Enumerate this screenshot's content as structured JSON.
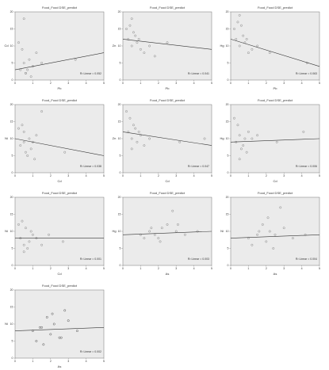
{
  "chart_data": [
    {
      "type": "scatter",
      "title": "Food_Food DSE_predict",
      "x_label": "Pb",
      "y_label": "Cd",
      "annotation": "R² Linear = 0.052",
      "color": "#888888",
      "line_color": "#333333",
      "x": [
        0.3,
        0.5,
        0.6,
        0.8,
        1.0,
        0.4,
        0.7,
        1.2,
        0.9,
        1.5,
        0.2,
        3.4,
        0.5,
        0.6
      ],
      "y": [
        3,
        5,
        2,
        6,
        4,
        9,
        3,
        8,
        1,
        5,
        11,
        6,
        18,
        2
      ],
      "fit": [
        3,
        8
      ],
      "xlim": [
        0,
        5
      ],
      "ylim": [
        0,
        20
      ],
      "xticks": [
        0,
        1,
        2,
        3,
        4,
        5
      ],
      "yticks": [
        0,
        5,
        10,
        15,
        20
      ]
    },
    {
      "type": "scatter",
      "title": "Food_Food DSE_predict",
      "x_label": "Pb",
      "y_label": "Zn",
      "annotation": "R² Linear = 0.041",
      "color": "#888888",
      "line_color": "#333333",
      "x": [
        0.3,
        0.5,
        0.6,
        0.8,
        1.0,
        0.4,
        0.7,
        1.2,
        0.9,
        1.5,
        0.2,
        2.5,
        0.5,
        1.8
      ],
      "y": [
        12,
        10,
        14,
        11,
        9,
        16,
        13,
        8,
        12,
        10,
        15,
        11,
        18,
        7
      ],
      "fit": [
        12,
        9
      ],
      "xlim": [
        0,
        5
      ],
      "ylim": [
        0,
        20
      ],
      "xticks": [
        0,
        1,
        2,
        3,
        4,
        5
      ],
      "yticks": [
        0,
        5,
        10,
        15,
        20
      ]
    },
    {
      "type": "scatter",
      "title": "Food_Food DSE_predict",
      "x_label": "Pb",
      "y_label": "Hg",
      "annotation": "R² Linear = 0.063",
      "color": "#888888",
      "line_color": "#333333",
      "x": [
        0.3,
        0.5,
        0.6,
        0.8,
        1.0,
        0.4,
        0.7,
        1.2,
        0.9,
        1.5,
        0.2,
        2.2,
        0.5,
        4.3
      ],
      "y": [
        12,
        10,
        16,
        11,
        8,
        17,
        13,
        9,
        12,
        10,
        15,
        8,
        19,
        5
      ],
      "fit": [
        12,
        4
      ],
      "xlim": [
        0,
        5
      ],
      "ylim": [
        0,
        20
      ],
      "xticks": [
        0,
        1,
        2,
        3,
        4,
        5
      ],
      "yticks": [
        0,
        5,
        10,
        15,
        20
      ]
    },
    {
      "type": "scatter",
      "title": "Food_Food DSE_predict",
      "x_label": "Cd",
      "y_label": "Ni",
      "annotation": "R² Linear = 0.038",
      "color": "#888888",
      "line_color": "#333333",
      "x": [
        0.3,
        0.5,
        0.6,
        0.8,
        1.0,
        0.4,
        0.7,
        1.2,
        0.9,
        1.5,
        0.2,
        2.8,
        0.5,
        1.1
      ],
      "y": [
        8,
        12,
        6,
        10,
        9,
        14,
        5,
        11,
        7,
        18,
        13,
        6,
        9,
        4
      ],
      "fit": [
        10,
        5
      ],
      "xlim": [
        0,
        5
      ],
      "ylim": [
        0,
        20
      ],
      "xticks": [
        0,
        1,
        2,
        3,
        4,
        5
      ],
      "yticks": [
        0,
        5,
        10,
        15,
        20
      ]
    },
    {
      "type": "scatter",
      "title": "Food_Food DSE_predict",
      "x_label": "Cd",
      "y_label": "Zn",
      "annotation": "R² Linear = 0.047",
      "color": "#888888",
      "line_color": "#333333",
      "x": [
        0.3,
        0.5,
        0.6,
        0.8,
        1.0,
        0.4,
        0.7,
        1.2,
        0.9,
        1.5,
        0.2,
        3.2,
        0.5,
        4.6
      ],
      "y": [
        12,
        10,
        14,
        9,
        11,
        16,
        13,
        8,
        12,
        10,
        18,
        9,
        7,
        10
      ],
      "fit": [
        12,
        8
      ],
      "xlim": [
        0,
        5
      ],
      "ylim": [
        0,
        20
      ],
      "xticks": [
        0,
        1,
        2,
        3,
        4,
        5
      ],
      "yticks": [
        0,
        5,
        10,
        15,
        20
      ]
    },
    {
      "type": "scatter",
      "title": "Food_Food DSE_predict",
      "x_label": "Cd",
      "y_label": "Hg",
      "annotation": "R² Linear = 0.006",
      "color": "#888888",
      "line_color": "#333333",
      "x": [
        0.3,
        0.5,
        0.6,
        0.8,
        1.0,
        0.4,
        0.7,
        1.2,
        0.9,
        1.5,
        0.2,
        2.6,
        0.5,
        4.1
      ],
      "y": [
        9,
        11,
        7,
        10,
        12,
        14,
        8,
        10,
        6,
        11,
        16,
        9,
        4,
        12
      ],
      "fit": [
        9,
        10
      ],
      "xlim": [
        0,
        5
      ],
      "ylim": [
        0,
        20
      ],
      "xticks": [
        0,
        1,
        2,
        3,
        4,
        5
      ],
      "yticks": [
        0,
        5,
        10,
        15,
        20
      ]
    },
    {
      "type": "scatter",
      "title": "Food_Food DSE_predict",
      "x_label": "Cd",
      "y_label": "Ni",
      "annotation": "R² Linear = 0.001",
      "color": "#888888",
      "line_color": "#333333",
      "x": [
        0.3,
        0.5,
        0.6,
        0.8,
        1.0,
        0.4,
        0.7,
        1.2,
        0.9,
        1.5,
        0.2,
        2.7,
        0.5,
        1.9
      ],
      "y": [
        8,
        6,
        11,
        7,
        9,
        13,
        5,
        8,
        10,
        6,
        12,
        7,
        4,
        9
      ],
      "fit": [
        8,
        8
      ],
      "xlim": [
        0,
        5
      ],
      "ylim": [
        0,
        20
      ],
      "xticks": [
        0,
        1,
        2,
        3,
        4,
        5
      ],
      "yticks": [
        0,
        5,
        10,
        15,
        20
      ]
    },
    {
      "type": "scatter",
      "title": "Food_Food DSE_predict",
      "x_label": "As",
      "y_label": "Hg",
      "annotation": "R² Linear = 0.003",
      "color": "#888888",
      "line_color": "#333333",
      "x": [
        1.0,
        1.5,
        2.0,
        2.2,
        1.8,
        2.5,
        3.0,
        1.2,
        2.8,
        3.5,
        1.6,
        2.1,
        4.2,
        3.1
      ],
      "y": [
        9,
        10,
        8,
        11,
        9,
        12,
        10,
        8,
        16,
        9,
        11,
        7,
        10,
        12
      ],
      "fit": [
        9,
        10
      ],
      "xlim": [
        0,
        5
      ],
      "ylim": [
        0,
        20
      ],
      "xticks": [
        0,
        1,
        2,
        3,
        4,
        5
      ],
      "yticks": [
        0,
        5,
        10,
        15,
        20
      ]
    },
    {
      "type": "scatter",
      "title": "Food_Food DSE_predict",
      "x_label": "As",
      "y_label": "Ni",
      "annotation": "R² Linear = 0.004",
      "color": "#888888",
      "line_color": "#333333",
      "x": [
        1.0,
        1.5,
        2.0,
        2.2,
        1.8,
        2.5,
        3.0,
        1.2,
        2.8,
        3.5,
        1.6,
        2.1,
        4.2,
        2.4
      ],
      "y": [
        8,
        9,
        7,
        10,
        12,
        9,
        11,
        6,
        17,
        8,
        10,
        14,
        9,
        5
      ],
      "fit": [
        8,
        9
      ],
      "xlim": [
        0,
        5
      ],
      "ylim": [
        0,
        20
      ],
      "xticks": [
        0,
        1,
        2,
        3,
        4,
        5
      ],
      "yticks": [
        0,
        5,
        10,
        15,
        20
      ]
    },
    {
      "type": "scatter",
      "title": "Food_Food DSE_predict",
      "x_label": "As",
      "y_label": "Ni",
      "annotation": "R² Linear = 0.002",
      "color": "#555555",
      "line_color": "#333333",
      "x": [
        1.0,
        1.5,
        2.0,
        2.2,
        1.8,
        2.5,
        3.0,
        1.2,
        2.8,
        3.5,
        1.6,
        2.1,
        1.4,
        2.6
      ],
      "y": [
        8,
        9,
        7,
        10,
        12,
        6,
        11,
        5,
        14,
        8,
        4,
        13,
        9,
        6
      ],
      "fit": [
        8,
        9
      ],
      "xlim": [
        0,
        5
      ],
      "ylim": [
        0,
        20
      ],
      "xticks": [
        0,
        1,
        2,
        3,
        4,
        5
      ],
      "yticks": [
        0,
        5,
        10,
        15,
        20
      ]
    }
  ]
}
